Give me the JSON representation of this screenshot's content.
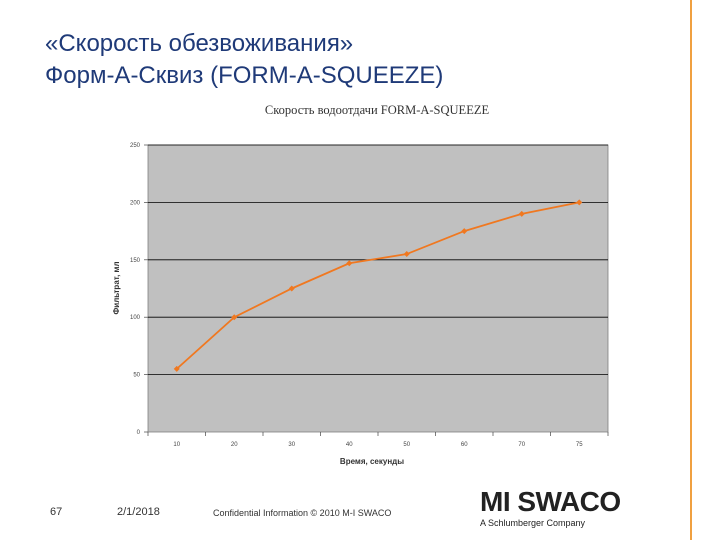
{
  "slide": {
    "title_line1": "«Скорость обезвоживания»",
    "title_line2": "Форм-А-Сквиз (FORM-A-SQUEEZE)"
  },
  "chart_data": {
    "type": "line",
    "title": "Скорость водоотдачи FORM-A-SQUEEZE",
    "xlabel": "Время, секунды",
    "ylabel": "Фильтрат, мл",
    "categories": [
      "10",
      "20",
      "30",
      "40",
      "50",
      "60",
      "70",
      "75"
    ],
    "series": [
      {
        "values": [
          55,
          100,
          125,
          147,
          155,
          175,
          190,
          200
        ]
      }
    ],
    "ylim": [
      0,
      250
    ],
    "yticks": [
      0,
      50,
      100,
      150,
      200,
      250
    ],
    "grid": true,
    "plot_background": "#c0c0c0",
    "line_color": "#f07820"
  },
  "footer": {
    "page_number": "67",
    "date": "2/1/2018",
    "confidential": "Confidential Information © 2010 M-I SWACO"
  },
  "logo": {
    "brand": "MI SWACO",
    "tagline": "A Schlumberger Company"
  },
  "colors": {
    "title": "#1f3a78",
    "accent_stripe": "#f0a040"
  }
}
